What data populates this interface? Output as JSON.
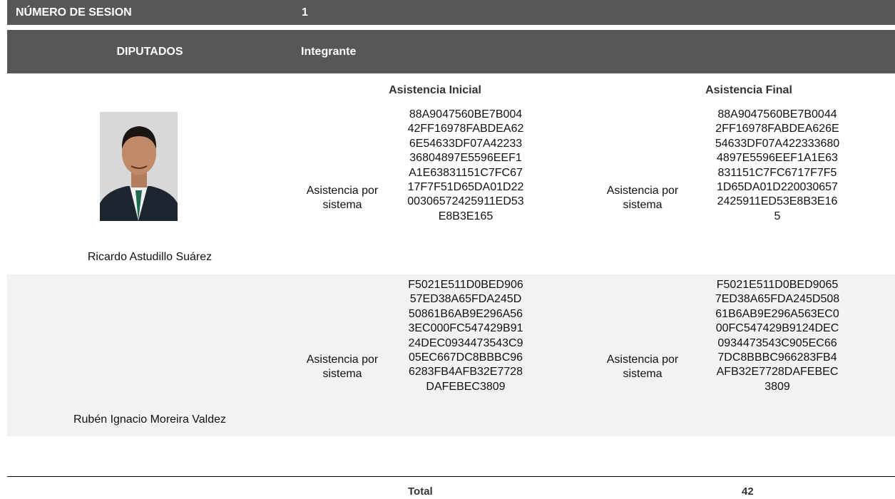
{
  "header": {
    "session_label": "NÚMERO DE SESION",
    "session_value": "1",
    "diputados_label": "DIPUTADOS",
    "integrante_label": "Integrante"
  },
  "columns": {
    "initial": "Asistencia Inicial",
    "final": "Asistencia Final"
  },
  "rows": [
    {
      "name": "Ricardo Astudillo Suárez",
      "initial_type": "Asistencia por sistema",
      "initial_hash": [
        "88A9047560BE7B004",
        "42FF16978FABDEA62",
        "6E54633DF07A42233",
        "36804897E5596EEF1",
        "A1E63831151C7FC67",
        "17F7F51D65DA01D22",
        "00306572425911ED53",
        "E8B3E165"
      ],
      "final_type": "Asistencia por sistema",
      "final_hash": [
        "88A9047560BE7B0044",
        "2FF16978FABDEA626E",
        "54633DF07A422333680",
        "4897E5596EEF1A1E63",
        "831151C7FC6717F7F5",
        "1D65DA01D220030657",
        "2425911ED53E8B3E16",
        "5"
      ]
    },
    {
      "name": "Rubén Ignacio Moreira Valdez",
      "initial_type": "Asistencia por sistema",
      "initial_hash": [
        "F5021E511D0BED906",
        "57ED38A65FDA245D",
        "50861B6AB9E296A56",
        "3EC000FC547429B91",
        "24DEC0934473543C9",
        "05EC667DC8BBBC96",
        "6283FB4AFB32E7728",
        "DAFEBEC3809"
      ],
      "final_type": "Asistencia por sistema",
      "final_hash": [
        "F5021E511D0BED9065",
        "7ED38A65FDA245D508",
        "61B6AB9E296A563EC0",
        "00FC547429B9124DEC",
        "0934473543C905EC66",
        "7DC8BBBC966283FB4",
        "AFB32E7728DAFEBEC",
        "3809"
      ]
    }
  ],
  "total": {
    "label": "Total",
    "value": "42"
  }
}
